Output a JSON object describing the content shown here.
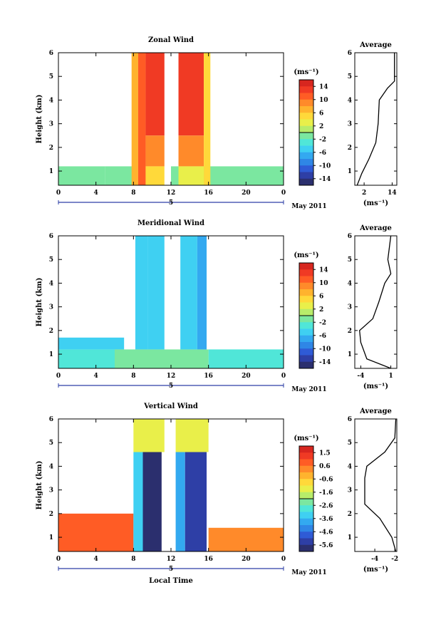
{
  "colors": {
    "scale": [
      "#2b2f6e",
      "#2e3fa6",
      "#2f5bd6",
      "#2f86e6",
      "#33a9f0",
      "#3fd0f2",
      "#50e6d8",
      "#7be7a0",
      "#b8ec6a",
      "#e9ef4a",
      "#ffd93a",
      "#ffb32e",
      "#ff8a2a",
      "#ff5c25",
      "#f03a24",
      "#d7261f"
    ]
  },
  "common": {
    "date_label": "May 2011",
    "day_label": "5",
    "ylabel": "Height (km)",
    "xlabel": "Local Time",
    "unit_label": "(ms⁻¹)",
    "avg_title": "Average",
    "avg_xlabel": "(ms⁻¹)"
  },
  "chart_data": [
    {
      "type": "heatmap",
      "title": "Zonal Wind",
      "x_ticks": [
        "0",
        "4",
        "8",
        "12",
        "16",
        "20",
        "0"
      ],
      "y_ticks": [
        "1",
        "2",
        "3",
        "4",
        "5",
        "6"
      ],
      "xlim": [
        0,
        24
      ],
      "ylim": [
        0.4,
        6
      ],
      "colorbar_ticks": [
        "14",
        "10",
        "6",
        "2",
        "-2",
        "-6",
        "-10",
        "-14"
      ],
      "colorbar_range": [
        -16,
        16
      ],
      "blocks": [
        {
          "x0": 0,
          "x1": 5,
          "y0": 0.4,
          "y1": 1.2,
          "value": -1.5
        },
        {
          "x0": 5,
          "x1": 8,
          "y0": 0.4,
          "y1": 1.2,
          "value": -1
        },
        {
          "x0": 12,
          "x1": 24,
          "y0": 0.4,
          "y1": 1.2,
          "value": -1
        },
        {
          "x0": 7.8,
          "x1": 8.5,
          "y0": 0.4,
          "y1": 6,
          "value": 7
        },
        {
          "x0": 8.5,
          "x1": 9.3,
          "y0": 0.4,
          "y1": 6,
          "value": 11
        },
        {
          "x0": 9.3,
          "x1": 11.3,
          "y0": 2.5,
          "y1": 6,
          "value": 13
        },
        {
          "x0": 9.3,
          "x1": 11.3,
          "y0": 1.2,
          "y1": 2.5,
          "value": 8
        },
        {
          "x0": 9.3,
          "x1": 11.3,
          "y0": 0.4,
          "y1": 1.2,
          "value": 4
        },
        {
          "x0": 12.8,
          "x1": 15.5,
          "y0": 2.5,
          "y1": 6,
          "value": 12
        },
        {
          "x0": 12.8,
          "x1": 15.5,
          "y0": 1.2,
          "y1": 2.5,
          "value": 8
        },
        {
          "x0": 12.8,
          "x1": 15.5,
          "y0": 0.4,
          "y1": 1.2,
          "value": 3
        },
        {
          "x0": 15.5,
          "x1": 16.2,
          "y0": 0.4,
          "y1": 6,
          "value": 5
        }
      ],
      "avg": {
        "x_ticks": [
          "2",
          "14"
        ],
        "xlim": [
          -2,
          16
        ],
        "points": [
          [
            -1,
            0.4
          ],
          [
            1,
            0.9
          ],
          [
            4,
            1.5
          ],
          [
            7,
            2.2
          ],
          [
            8,
            3
          ],
          [
            8.5,
            4
          ],
          [
            12,
            4.5
          ],
          [
            15,
            4.8
          ],
          [
            15,
            6
          ]
        ]
      }
    },
    {
      "type": "heatmap",
      "title": "Meridional Wind",
      "x_ticks": [
        "0",
        "4",
        "8",
        "12",
        "16",
        "20",
        "0"
      ],
      "y_ticks": [
        "1",
        "2",
        "3",
        "4",
        "5",
        "6"
      ],
      "xlim": [
        0,
        24
      ],
      "ylim": [
        0.4,
        6
      ],
      "colorbar_ticks": [
        "14",
        "10",
        "6",
        "2",
        "-2",
        "-6",
        "-10",
        "-14"
      ],
      "colorbar_range": [
        -16,
        16
      ],
      "blocks": [
        {
          "x0": 0,
          "x1": 6,
          "y0": 0.4,
          "y1": 1.2,
          "value": -3
        },
        {
          "x0": 0,
          "x1": 7,
          "y0": 1.2,
          "y1": 1.7,
          "value": -6
        },
        {
          "x0": 16,
          "x1": 24,
          "y0": 0.4,
          "y1": 1.2,
          "value": -3
        },
        {
          "x0": 6,
          "x1": 16,
          "y0": 0.4,
          "y1": 1.2,
          "value": -1
        },
        {
          "x0": 8.2,
          "x1": 9.5,
          "y0": 1.2,
          "y1": 6,
          "value": -5
        },
        {
          "x0": 9.5,
          "x1": 11.3,
          "y0": 1.2,
          "y1": 6,
          "value": -6
        },
        {
          "x0": 13,
          "x1": 14.8,
          "y0": 1.2,
          "y1": 6,
          "value": -5
        },
        {
          "x0": 14.8,
          "x1": 15.8,
          "y0": 1.2,
          "y1": 6,
          "value": -8
        }
      ],
      "avg": {
        "x_ticks": [
          "-4",
          "1"
        ],
        "xlim": [
          -5,
          2
        ],
        "points": [
          [
            1,
            0.4
          ],
          [
            -3,
            0.8
          ],
          [
            -4,
            1.5
          ],
          [
            -4.2,
            2
          ],
          [
            -2,
            2.5
          ],
          [
            -1,
            3.2
          ],
          [
            0,
            4
          ],
          [
            1,
            4.4
          ],
          [
            0.5,
            5
          ],
          [
            1,
            6
          ]
        ]
      }
    },
    {
      "type": "heatmap",
      "title": "Vertical Wind",
      "x_ticks": [
        "0",
        "4",
        "8",
        "12",
        "16",
        "20",
        "0"
      ],
      "y_ticks": [
        "1",
        "2",
        "3",
        "4",
        "5",
        "6"
      ],
      "xlim": [
        0,
        24
      ],
      "ylim": [
        0.4,
        6
      ],
      "colorbar_ticks": [
        "1.5",
        "0.6",
        "-0.6",
        "-1.6",
        "-2.6",
        "-3.6",
        "-4.6",
        "-5.6"
      ],
      "colorbar_range": [
        -6,
        2
      ],
      "blocks": [
        {
          "x0": 0,
          "x1": 8,
          "y0": 0.4,
          "y1": 2,
          "value": 0.6
        },
        {
          "x0": 16,
          "x1": 24,
          "y0": 0.4,
          "y1": 1.4,
          "value": 0.3
        },
        {
          "x0": 8,
          "x1": 9,
          "y0": 0.4,
          "y1": 4.6,
          "value": -3.5
        },
        {
          "x0": 9,
          "x1": 11,
          "y0": 0.4,
          "y1": 4.6,
          "value": -5.6
        },
        {
          "x0": 12.5,
          "x1": 13.5,
          "y0": 0.4,
          "y1": 4.6,
          "value": -4
        },
        {
          "x0": 13.5,
          "x1": 15.8,
          "y0": 0.4,
          "y1": 4.6,
          "value": -5.4
        },
        {
          "x0": 8,
          "x1": 11.3,
          "y0": 4.6,
          "y1": 6,
          "value": -1.5
        },
        {
          "x0": 12.5,
          "x1": 16,
          "y0": 4.6,
          "y1": 6,
          "value": -1.5
        }
      ],
      "avg": {
        "x_ticks": [
          "-4",
          "-2"
        ],
        "xlim": [
          -6,
          -1.8
        ],
        "points": [
          [
            -1.9,
            0.4
          ],
          [
            -2.3,
            1
          ],
          [
            -3.5,
            1.8
          ],
          [
            -5,
            2.4
          ],
          [
            -5,
            3.5
          ],
          [
            -4.8,
            4
          ],
          [
            -3,
            4.6
          ],
          [
            -2,
            5.2
          ],
          [
            -1.9,
            6
          ]
        ]
      }
    }
  ]
}
